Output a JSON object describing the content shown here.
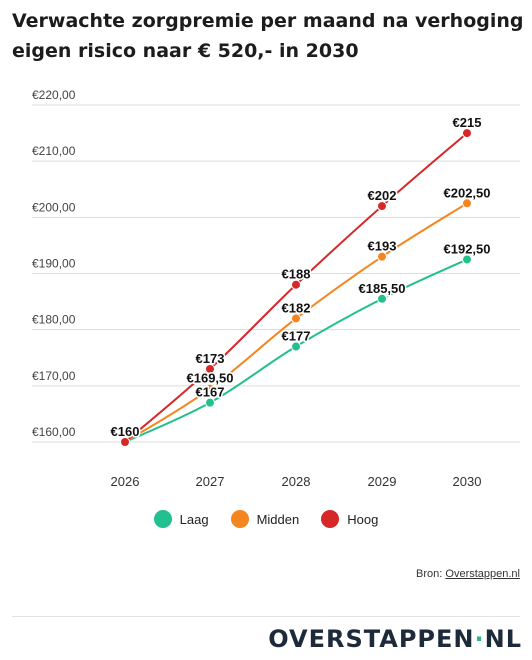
{
  "title": "Verwachte zorgpremie per maand na verhoging eigen risico naar € 520,- in 2030",
  "chart_data": {
    "type": "line",
    "title": "Verwachte zorgpremie per maand na verhoging eigen risico naar € 520,- in 2030",
    "categories": [
      "2026",
      "2027",
      "2028",
      "2029",
      "2030"
    ],
    "ylim": [
      160,
      220
    ],
    "yticks": [
      160,
      170,
      180,
      190,
      200,
      210,
      220
    ],
    "ytick_labels": [
      "€160,00",
      "€170,00",
      "€180,00",
      "€190,00",
      "€200,00",
      "€210,00",
      "€220,00"
    ],
    "grid": true,
    "legend_position": "bottom-center",
    "series": [
      {
        "name": "Laag",
        "color": "#22bf8f",
        "values": [
          160,
          167,
          177,
          185.5,
          192.5
        ],
        "labels": [
          "€160",
          "€167",
          "€177",
          "€185,50",
          "€192,50"
        ]
      },
      {
        "name": "Midden",
        "color": "#f5851f",
        "values": [
          160,
          169.5,
          182,
          193,
          202.5
        ],
        "labels": [
          "€160",
          "€169,50",
          "€182",
          "€193",
          "€202,50"
        ]
      },
      {
        "name": "Hoog",
        "color": "#d62828",
        "values": [
          160,
          173,
          188,
          202,
          215
        ],
        "labels": [
          "€160",
          "€173",
          "€188",
          "€202",
          "€215"
        ]
      }
    ]
  },
  "legend": {
    "items": [
      {
        "label": "Laag",
        "color": "#22bf8f"
      },
      {
        "label": "Midden",
        "color": "#f5851f"
      },
      {
        "label": "Hoog",
        "color": "#d62828"
      }
    ]
  },
  "source": {
    "prefix": "Bron: ",
    "link_text": "Overstappen.nl"
  },
  "logo": {
    "text": "OVERSTAPPEN",
    "dot": "·",
    "suffix": "NL"
  }
}
